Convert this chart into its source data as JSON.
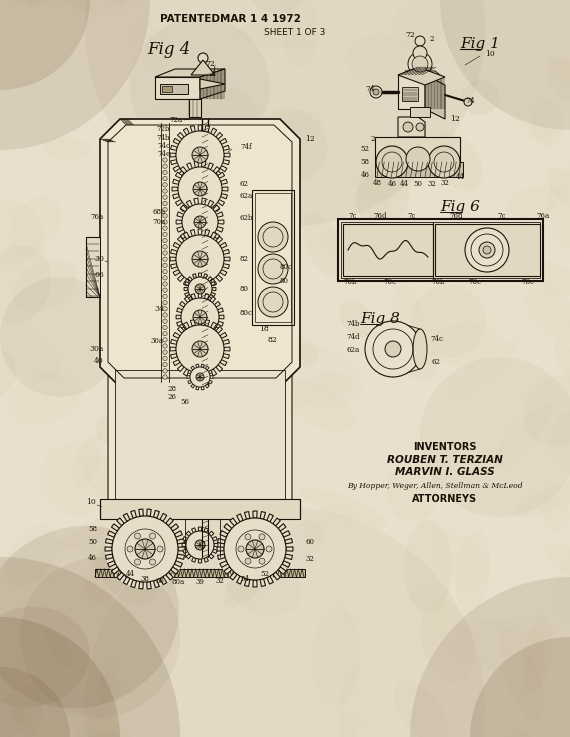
{
  "bg_base": "#e8e0cc",
  "bg_mid": "#ddd5bc",
  "line_color": "#1a1208",
  "line_color_light": "#3a2a18",
  "paper_stain1": "#c8b898",
  "paper_stain2": "#b8a880",
  "figsize": [
    5.7,
    7.37
  ],
  "dpi": 100,
  "title": "PATENTEDMAR 1 4 1972",
  "sheet": "SHEET 1 OF 3",
  "fig4": "Fig 4",
  "fig1": "Fig 1",
  "fig6": "Fig 6",
  "fig8": "Fig 8",
  "inv1": "INVENTORS",
  "inv2": "ROUBEN T. TERZIAN",
  "inv3": "MARVIN I. GLASS",
  "inv4": "By Hopper, Weger, Allen, Stellman & McLeod",
  "inv5": "ATTORNEYS"
}
